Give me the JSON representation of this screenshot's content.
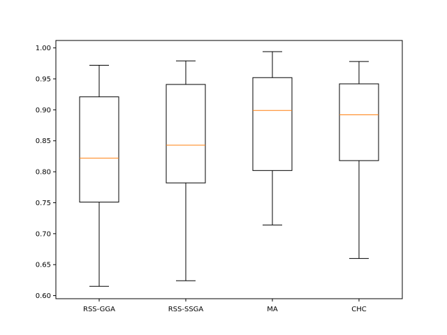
{
  "chart_data": {
    "type": "box",
    "title": "",
    "xlabel": "",
    "ylabel": "",
    "ylim": [
      0.595,
      1.012
    ],
    "yticks": [
      0.6,
      0.65,
      0.7,
      0.75,
      0.8,
      0.85,
      0.9,
      0.95,
      1.0
    ],
    "ytick_labels": [
      "0.60",
      "0.65",
      "0.70",
      "0.75",
      "0.80",
      "0.85",
      "0.90",
      "0.95",
      "1.00"
    ],
    "grid": false,
    "categories": [
      "RSS-GGA",
      "RSS-SSGA",
      "MA",
      "CHC"
    ],
    "boxes": [
      {
        "label": "RSS-GGA",
        "whisker_low": 0.615,
        "q1": 0.751,
        "median": 0.822,
        "q3": 0.921,
        "whisker_high": 0.972
      },
      {
        "label": "RSS-SSGA",
        "whisker_low": 0.624,
        "q1": 0.782,
        "median": 0.843,
        "q3": 0.941,
        "whisker_high": 0.979
      },
      {
        "label": "MA",
        "whisker_low": 0.714,
        "q1": 0.802,
        "median": 0.899,
        "q3": 0.952,
        "whisker_high": 0.994
      },
      {
        "label": "CHC",
        "whisker_low": 0.66,
        "q1": 0.818,
        "median": 0.892,
        "q3": 0.942,
        "whisker_high": 0.978
      }
    ],
    "colors": {
      "box": "#000000",
      "median": "#ff7f0e",
      "axes": "#000000",
      "background": "#ffffff"
    }
  }
}
